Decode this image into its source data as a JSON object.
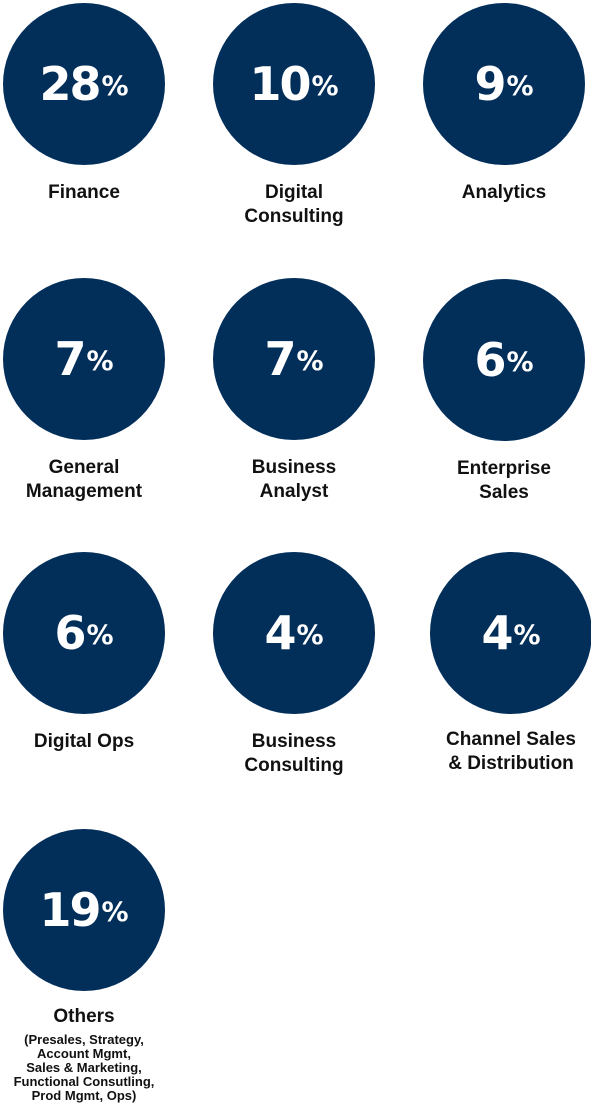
{
  "colors": {
    "circle": "#022e5a",
    "text": "#111111",
    "circle_text": "#ffffff"
  },
  "stats": [
    {
      "value": "28",
      "unit": "%",
      "label_lines": [
        "Finance"
      ]
    },
    {
      "value": "10",
      "unit": "%",
      "label_lines": [
        "Digital",
        "Consulting"
      ]
    },
    {
      "value": "9",
      "unit": "%",
      "label_lines": [
        "Analytics"
      ]
    },
    {
      "value": "7",
      "unit": "%",
      "label_lines": [
        "General",
        "Management"
      ]
    },
    {
      "value": "7",
      "unit": "%",
      "label_lines": [
        "Business",
        "Analyst"
      ]
    },
    {
      "value": "6",
      "unit": "%",
      "label_lines": [
        "Enterprise",
        "Sales"
      ]
    },
    {
      "value": "6",
      "unit": "%",
      "label_lines": [
        "Digital Ops"
      ]
    },
    {
      "value": "4",
      "unit": "%",
      "label_lines": [
        "Business",
        "Consulting"
      ]
    },
    {
      "value": "4",
      "unit": "%",
      "label_lines": [
        "Channel Sales",
        "& Distribution"
      ]
    },
    {
      "value": "19",
      "unit": "%",
      "label_lines": [
        "Others"
      ],
      "sublabel_lines": [
        "(Presales, Strategy,",
        "Account Mgmt,",
        "Sales & Marketing,",
        "Functional Consutling,",
        "Prod Mgmt, Ops)"
      ]
    }
  ]
}
